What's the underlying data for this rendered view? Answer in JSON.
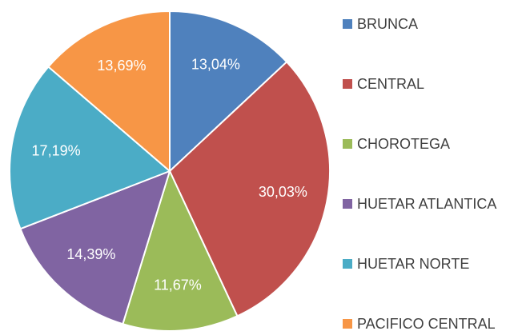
{
  "chart_data": {
    "type": "pie",
    "categories": [
      "BRUNCA",
      "CENTRAL",
      "CHOROTEGA",
      "HUETAR ATLANTICA",
      "HUETAR NORTE",
      "PACIFICO CENTRAL"
    ],
    "values": [
      13.04,
      30.03,
      11.67,
      14.39,
      17.19,
      13.69
    ],
    "value_labels": [
      "13,04%",
      "30,03%",
      "11,67%",
      "14,39%",
      "17,19%",
      "13,69%"
    ],
    "colors": [
      "#4f81bd",
      "#c0504d",
      "#9bbb59",
      "#8064a2",
      "#4bacc6",
      "#f79646"
    ],
    "legend": "right"
  }
}
